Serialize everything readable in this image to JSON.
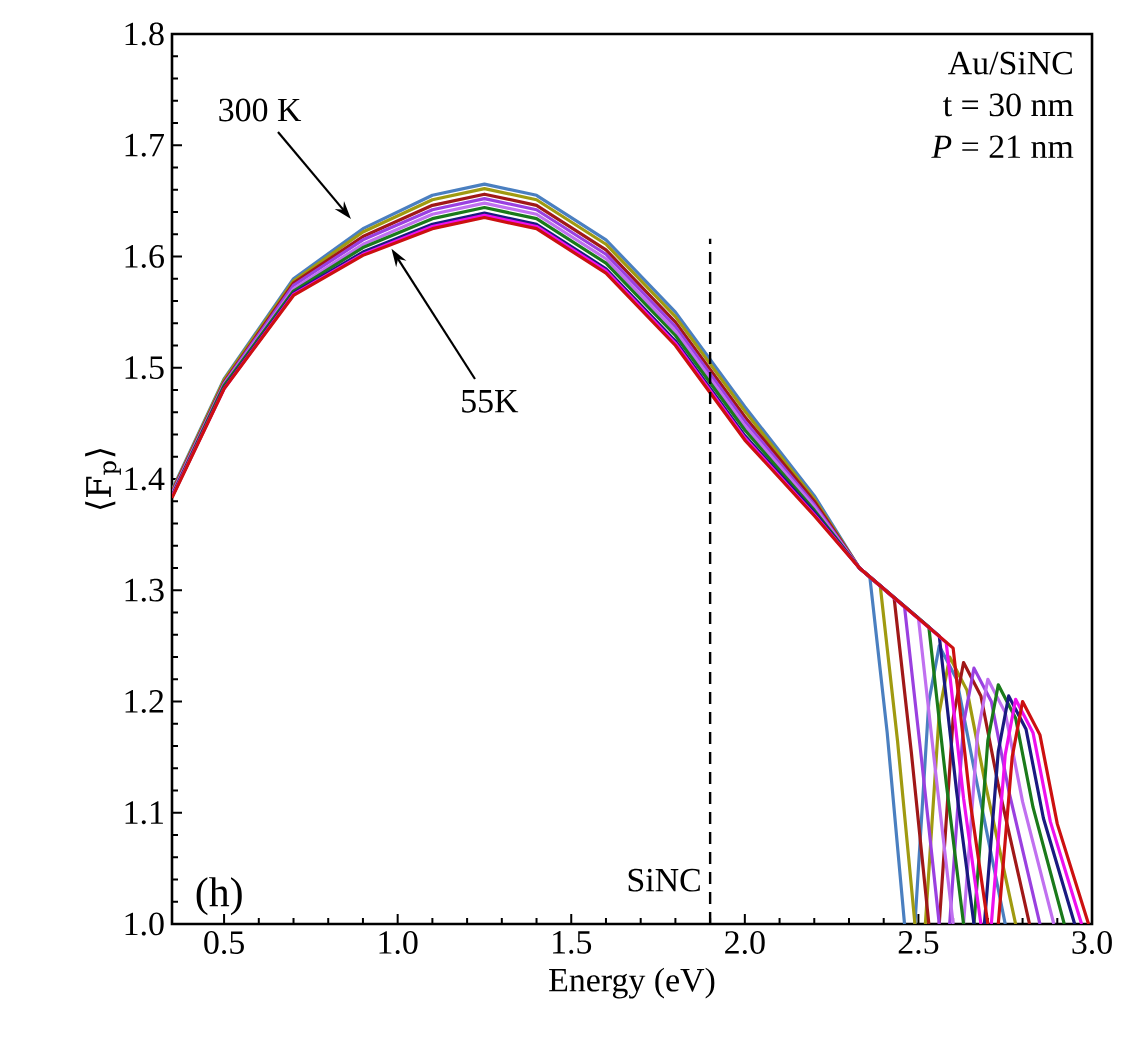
{
  "chart_data": {
    "type": "line",
    "xlabel": "Energy (eV)",
    "ylabel": "⟨F$_{p}$⟩",
    "xlim": [
      0.35,
      3.0
    ],
    "ylim": [
      1.0,
      1.8
    ],
    "xticks": [
      {
        "value": 0.5,
        "label": "0.5"
      },
      {
        "value": 1.0,
        "label": "1.0"
      },
      {
        "value": 1.5,
        "label": "1.5"
      },
      {
        "value": 2.0,
        "label": "2.0"
      },
      {
        "value": 2.5,
        "label": "2.5"
      },
      {
        "value": 3.0,
        "label": "3.0"
      }
    ],
    "yticks": [
      {
        "value": 1.0,
        "label": "1.0"
      },
      {
        "value": 1.1,
        "label": "1.1"
      },
      {
        "value": 1.2,
        "label": "1.2"
      },
      {
        "value": 1.3,
        "label": "1.3"
      },
      {
        "value": 1.4,
        "label": "1.4"
      },
      {
        "value": 1.5,
        "label": "1.5"
      },
      {
        "value": 1.6,
        "label": "1.6"
      },
      {
        "value": 1.7,
        "label": "1.7"
      },
      {
        "value": 1.8,
        "label": "1.8"
      }
    ],
    "series": [
      {
        "color": "#4a7fc0",
        "x": [
          0.35,
          0.5,
          0.7,
          0.9,
          1.1,
          1.25,
          1.4,
          1.6,
          1.8,
          2.0,
          2.2,
          2.33,
          2.36,
          2.41,
          2.46,
          2.475,
          2.49,
          2.53,
          2.56,
          2.61,
          2.66,
          2.75
        ],
        "values": [
          1.39,
          1.49,
          1.58,
          1.625,
          1.655,
          1.665,
          1.655,
          1.615,
          1.55,
          1.465,
          1.385,
          1.32,
          1.312,
          1.172,
          1.0,
          null,
          1.0,
          1.2,
          1.25,
          1.22,
          1.14,
          1.0
        ]
      },
      {
        "color": "#a09a10",
        "x": [
          0.35,
          0.5,
          0.7,
          0.9,
          1.1,
          1.25,
          1.4,
          1.6,
          1.8,
          2.0,
          2.2,
          2.33,
          2.39,
          2.44,
          2.49,
          2.505,
          2.52,
          2.56,
          2.59,
          2.64,
          2.69,
          2.78
        ],
        "values": [
          1.389,
          1.489,
          1.578,
          1.622,
          1.651,
          1.661,
          1.651,
          1.611,
          1.546,
          1.461,
          1.382,
          1.32,
          1.304,
          1.164,
          1.0,
          null,
          1.0,
          1.19,
          1.24,
          1.21,
          1.13,
          1.0
        ]
      },
      {
        "color": "#a01818",
        "x": [
          0.35,
          0.5,
          0.7,
          0.9,
          1.1,
          1.25,
          1.4,
          1.6,
          1.8,
          2.0,
          2.2,
          2.33,
          2.43,
          2.48,
          2.53,
          2.545,
          2.56,
          2.6,
          2.63,
          2.68,
          2.73,
          2.82
        ],
        "values": [
          1.388,
          1.487,
          1.576,
          1.618,
          1.646,
          1.656,
          1.646,
          1.606,
          1.541,
          1.456,
          1.38,
          1.32,
          1.293,
          1.153,
          1.0,
          null,
          1.0,
          1.185,
          1.235,
          1.205,
          1.125,
          1.0
        ]
      },
      {
        "color": "#9a40e0",
        "x": [
          0.35,
          0.5,
          0.7,
          0.9,
          1.1,
          1.25,
          1.4,
          1.6,
          1.8,
          2.0,
          2.2,
          2.33,
          2.46,
          2.51,
          2.56,
          2.575,
          2.59,
          2.63,
          2.66,
          2.71,
          2.76,
          2.85
        ],
        "values": [
          1.387,
          1.486,
          1.574,
          1.615,
          1.642,
          1.652,
          1.642,
          1.602,
          1.537,
          1.452,
          1.377,
          1.32,
          1.285,
          1.145,
          1.0,
          null,
          1.0,
          1.18,
          1.23,
          1.2,
          1.12,
          1.0
        ]
      },
      {
        "color": "#c070f0",
        "x": [
          0.35,
          0.5,
          0.7,
          0.9,
          1.1,
          1.25,
          1.4,
          1.6,
          1.8,
          2.0,
          2.2,
          2.33,
          2.5,
          2.55,
          2.6,
          2.615,
          2.63,
          2.67,
          2.7,
          2.75,
          2.8,
          2.89
        ],
        "values": [
          1.386,
          1.485,
          1.571,
          1.611,
          1.638,
          1.648,
          1.638,
          1.598,
          1.533,
          1.448,
          1.375,
          1.32,
          1.275,
          1.135,
          1.0,
          null,
          1.0,
          1.17,
          1.22,
          1.19,
          1.11,
          1.0
        ]
      },
      {
        "color": "#1a7a1a",
        "x": [
          0.35,
          0.5,
          0.7,
          0.9,
          1.1,
          1.25,
          1.4,
          1.6,
          1.8,
          2.0,
          2.2,
          2.33,
          2.53,
          2.58,
          2.63,
          2.645,
          2.66,
          2.7,
          2.73,
          2.78,
          2.83,
          2.92
        ],
        "values": [
          1.385,
          1.484,
          1.569,
          1.608,
          1.634,
          1.644,
          1.634,
          1.594,
          1.529,
          1.444,
          1.372,
          1.32,
          1.267,
          1.127,
          1.0,
          null,
          1.0,
          1.165,
          1.215,
          1.185,
          1.105,
          1.0
        ]
      },
      {
        "color": "#1a1a80",
        "x": [
          0.35,
          0.5,
          0.7,
          0.9,
          1.1,
          1.25,
          1.4,
          1.6,
          1.8,
          2.0,
          2.2,
          2.33,
          2.56,
          2.61,
          2.66,
          2.675,
          2.69,
          2.73,
          2.76,
          2.81,
          2.86,
          2.95
        ],
        "values": [
          1.384,
          1.482,
          1.567,
          1.604,
          1.629,
          1.639,
          1.629,
          1.589,
          1.524,
          1.439,
          1.37,
          1.32,
          1.259,
          1.119,
          1.0,
          null,
          1.0,
          1.155,
          1.205,
          1.175,
          1.095,
          1.0
        ]
      },
      {
        "color": "#ee10ee",
        "x": [
          0.35,
          0.5,
          0.7,
          0.9,
          1.1,
          1.25,
          1.4,
          1.6,
          1.8,
          2.0,
          2.2,
          2.33,
          2.58,
          2.63,
          2.68,
          2.695,
          2.71,
          2.75,
          2.78,
          2.83,
          2.88,
          2.97
        ],
        "values": [
          1.384,
          1.481,
          1.566,
          1.602,
          1.627,
          1.637,
          1.627,
          1.587,
          1.522,
          1.437,
          1.368,
          1.32,
          1.253,
          1.113,
          1.0,
          null,
          1.0,
          1.152,
          1.202,
          1.172,
          1.092,
          1.0
        ]
      },
      {
        "color": "#cc1010",
        "x": [
          0.35,
          0.5,
          0.7,
          0.9,
          1.1,
          1.25,
          1.4,
          1.6,
          1.8,
          2.0,
          2.2,
          2.33,
          2.6,
          2.65,
          2.7,
          2.715,
          2.73,
          2.77,
          2.8,
          2.85,
          2.9,
          2.99
        ],
        "values": [
          1.383,
          1.481,
          1.565,
          1.601,
          1.625,
          1.635,
          1.625,
          1.585,
          1.52,
          1.435,
          1.367,
          1.32,
          1.248,
          1.108,
          1.0,
          null,
          1.0,
          1.15,
          1.2,
          1.17,
          1.09,
          1.0
        ]
      }
    ],
    "ref_lines": [
      {
        "axis": "x",
        "value": 1.9,
        "label": "SiNC",
        "color": "#000000",
        "line_style": "dashed"
      }
    ],
    "annotations": [
      {
        "text": "300 K",
        "x": 0.873,
        "y": 1.631
      },
      {
        "text": "55K",
        "x": 0.976,
        "y": 1.61
      },
      "Au/SiNC",
      "t = 30 nm",
      "*P* = 21 nm",
      "(h)"
    ]
  }
}
